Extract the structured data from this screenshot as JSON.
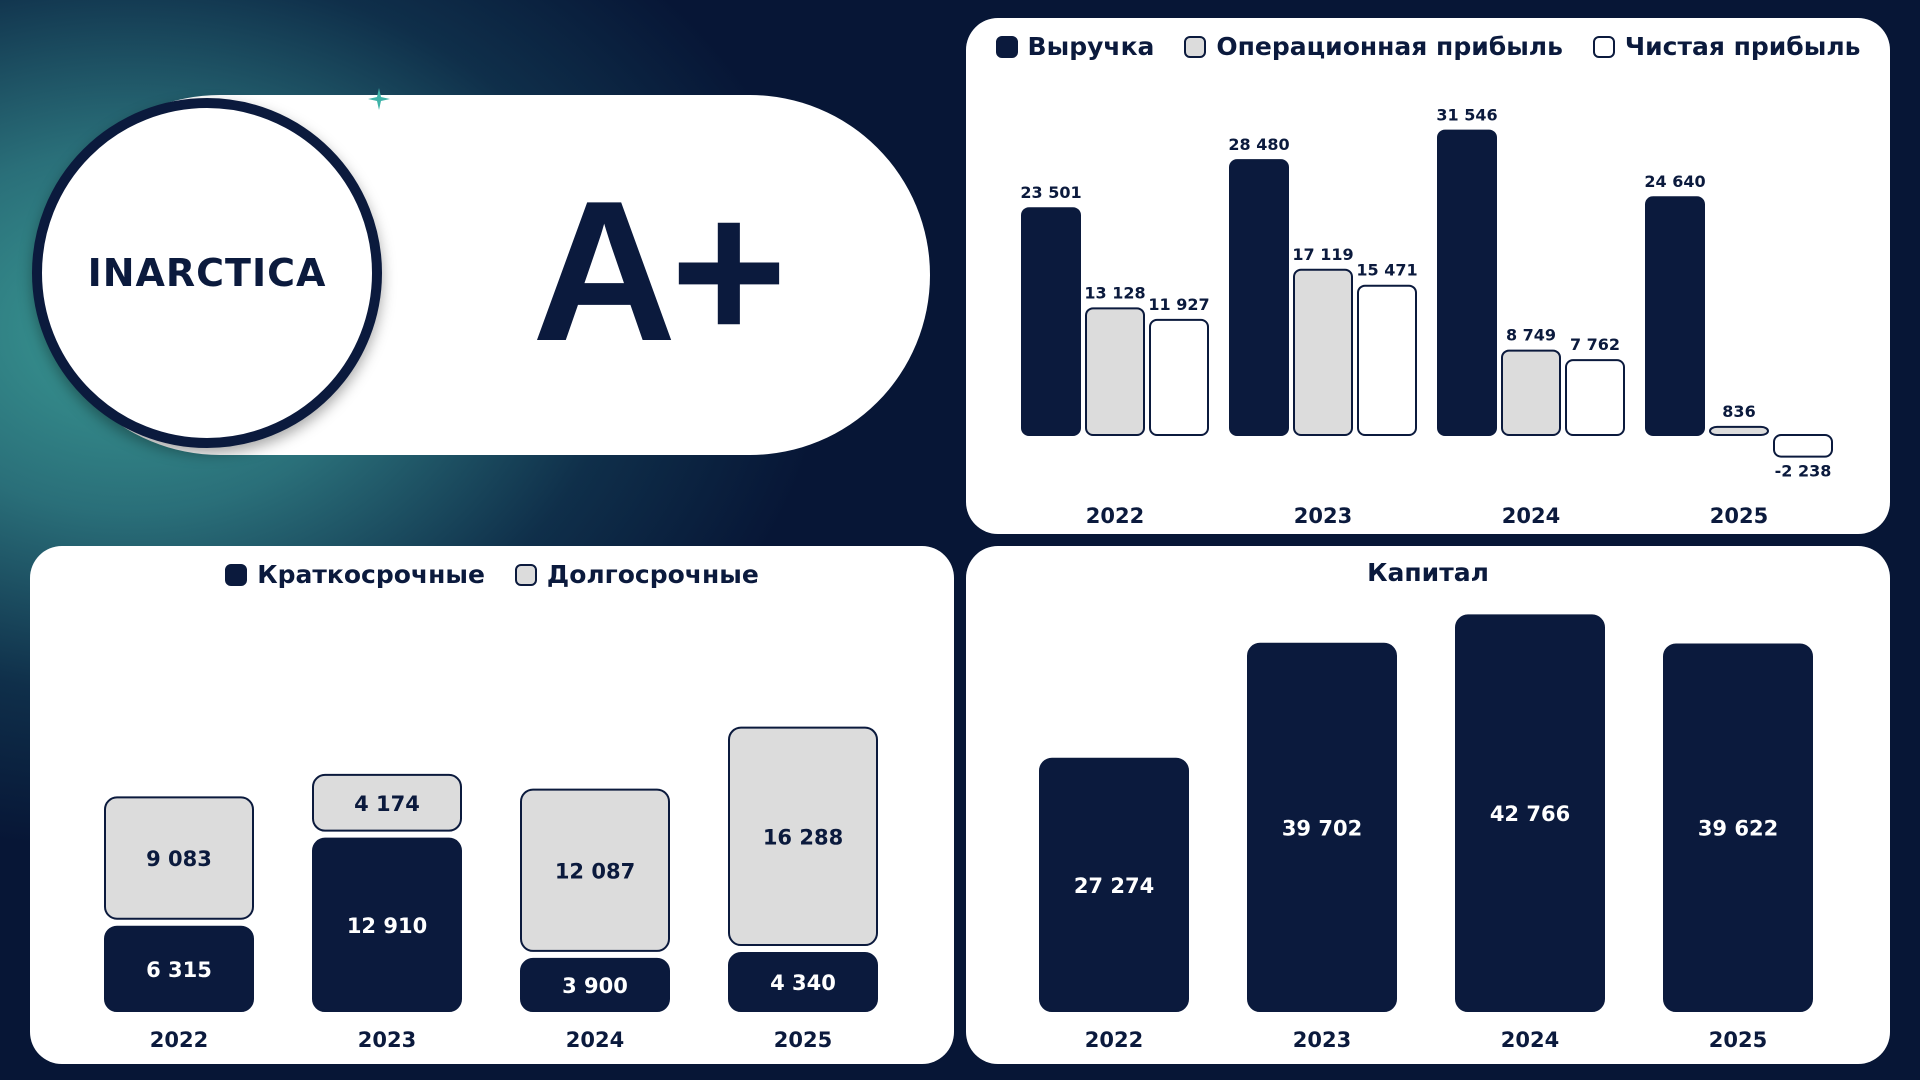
{
  "header": {
    "logo_text": "INARCTICA",
    "rating": "A+"
  },
  "colors": {
    "navy": "#0b1a3d",
    "light_gray": "#dcdcdc",
    "white": "#ffffff",
    "accent_teal": "#3a9a94"
  },
  "icons": {
    "logo_mark": "sparkle-icon"
  },
  "chart_data": [
    {
      "type": "bar",
      "categories": [
        "2022",
        "2023",
        "2024",
        "2025"
      ],
      "series": [
        {
          "name": "Выручка",
          "values": [
            23501,
            28480,
            31546,
            24640
          ],
          "labels": [
            "23 501",
            "28 480",
            "31 546",
            "24 640"
          ],
          "color": "#0b1a3d"
        },
        {
          "name": "Операционная прибыль",
          "values": [
            13128,
            17119,
            8749,
            836
          ],
          "labels": [
            "13 128",
            "17 119",
            "8 749",
            "836"
          ],
          "color": "#dcdcdc"
        },
        {
          "name": "Чистая прибыль",
          "values": [
            11927,
            15471,
            7762,
            -2238
          ],
          "labels": [
            "11 927",
            "15 471",
            "7 762",
            "-2 238"
          ],
          "color": "#ffffff"
        }
      ],
      "legend": "top"
    },
    {
      "type": "bar",
      "stacked": true,
      "categories": [
        "2022",
        "2023",
        "2024",
        "2025"
      ],
      "series": [
        {
          "name": "Краткосрочные",
          "values": [
            6315,
            12910,
            3900,
            4340
          ],
          "labels": [
            "6 315",
            "12 910",
            "3 900",
            "4 340"
          ],
          "color": "#0b1a3d"
        },
        {
          "name": "Долгосрочные",
          "values": [
            9083,
            4174,
            12087,
            16288
          ],
          "labels": [
            "9 083",
            "4 174",
            "12 087",
            "16 288"
          ],
          "color": "#dcdcdc"
        }
      ],
      "legend": "top"
    },
    {
      "type": "bar",
      "title": "Капитал",
      "categories": [
        "2022",
        "2023",
        "2024",
        "2025"
      ],
      "series": [
        {
          "values": [
            27274,
            39702,
            42766,
            39622
          ],
          "labels": [
            "27 274",
            "39 702",
            "42 766",
            "39 622"
          ],
          "color": "#0b1a3d"
        }
      ]
    }
  ]
}
